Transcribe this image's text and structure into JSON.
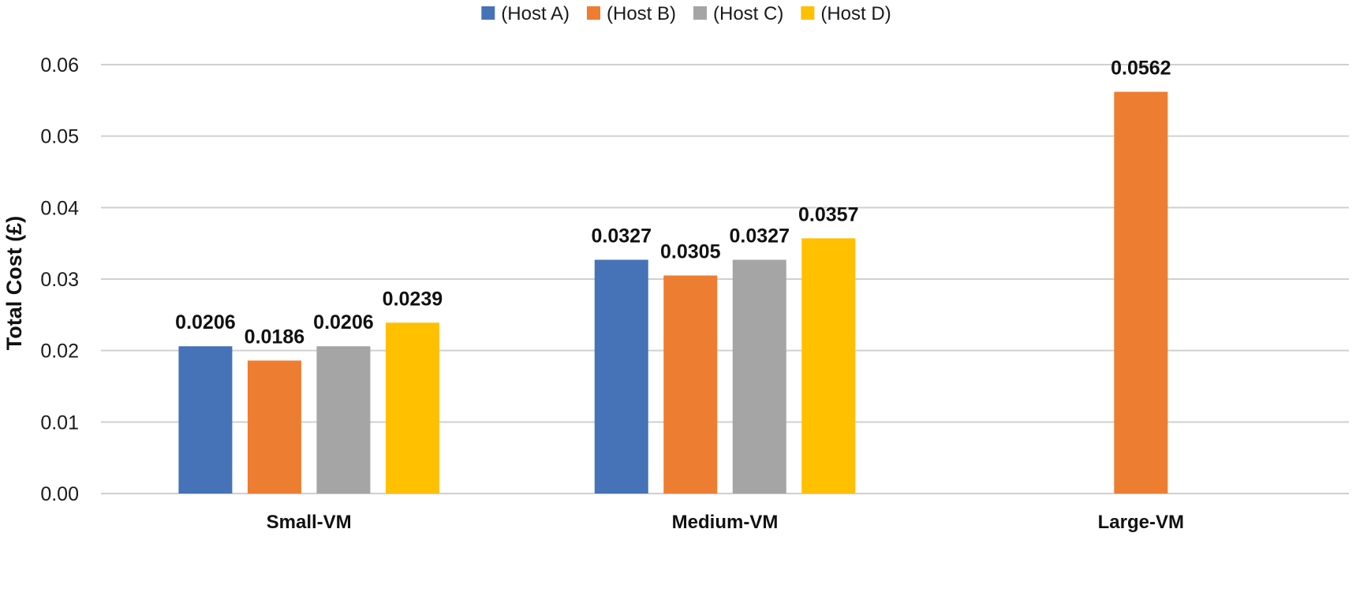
{
  "chart_data": {
    "type": "bar",
    "categories": [
      "Small-VM",
      "Medium-VM",
      "Large-VM"
    ],
    "series": [
      {
        "name": "(Host A)",
        "color": "#4672B8",
        "values": [
          0.0206,
          0.0327,
          null
        ]
      },
      {
        "name": "(Host B)",
        "color": "#ED7D31",
        "values": [
          0.0186,
          0.0305,
          0.0562
        ]
      },
      {
        "name": "(Host C)",
        "color": "#A5A5A5",
        "values": [
          0.0206,
          0.0327,
          null
        ]
      },
      {
        "name": "(Host D)",
        "color": "#FFC000",
        "values": [
          0.0239,
          0.0357,
          null
        ]
      }
    ],
    "data_labels": [
      [
        "0.0206",
        "0.0327",
        null
      ],
      [
        "0.0186",
        "0.0305",
        "0.0562"
      ],
      [
        "0.0206",
        "0.0327",
        null
      ],
      [
        "0.0239",
        "0.0357",
        null
      ]
    ],
    "title": "",
    "xlabel": "",
    "ylabel": "Total Cost (£)",
    "ylim": [
      0,
      0.06
    ],
    "yticks": [
      "0.00",
      "0.01",
      "0.02",
      "0.03",
      "0.04",
      "0.05",
      "0.06"
    ],
    "grid": true,
    "legend_position": "top-center"
  }
}
